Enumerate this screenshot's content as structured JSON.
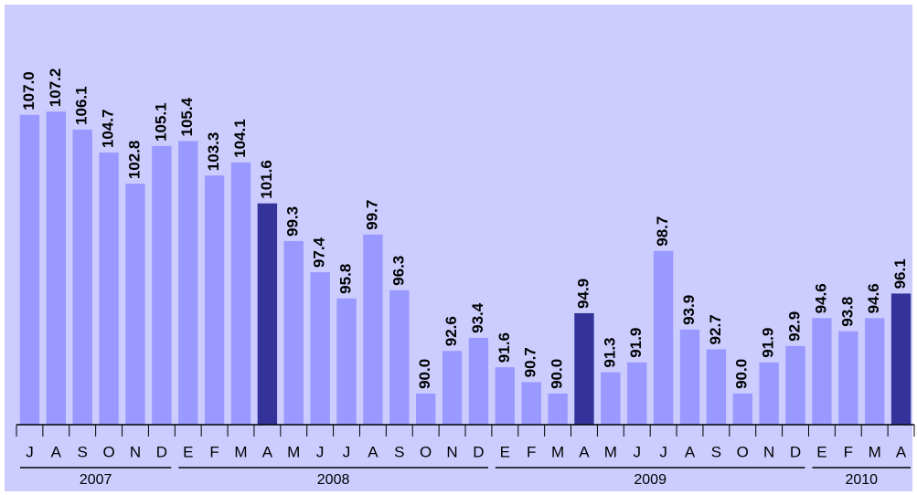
{
  "chart_data": {
    "type": "bar",
    "categories": [
      "J",
      "A",
      "S",
      "O",
      "N",
      "D",
      "E",
      "F",
      "M",
      "A",
      "M",
      "J",
      "J",
      "A",
      "S",
      "O",
      "N",
      "D",
      "E",
      "F",
      "M",
      "A",
      "M",
      "J",
      "J",
      "A",
      "S",
      "O",
      "N",
      "D",
      "E",
      "F",
      "M",
      "A"
    ],
    "values": [
      107.0,
      107.2,
      106.1,
      104.7,
      102.8,
      105.1,
      105.4,
      103.3,
      104.1,
      101.6,
      99.3,
      97.4,
      95.8,
      99.7,
      96.3,
      90.0,
      92.6,
      93.4,
      91.6,
      90.7,
      90.0,
      94.9,
      91.3,
      91.9,
      98.7,
      93.9,
      92.7,
      90.0,
      91.9,
      92.9,
      94.6,
      93.8,
      94.6,
      96.1
    ],
    "value_labels": [
      "107.0",
      "107.2",
      "106.1",
      "104.7",
      "102.8",
      "105.1",
      "105.4",
      "103.3",
      "104.1",
      "101.6",
      "99.3",
      "97.4",
      "95.8",
      "99.7",
      "96.3",
      "90.0",
      "92.6",
      "93.4",
      "91.6",
      "90.7",
      "90.0",
      "94.9",
      "91.3",
      "91.9",
      "98.7",
      "93.9",
      "92.7",
      "90.0",
      "91.9",
      "92.9",
      "94.6",
      "93.8",
      "94.6",
      "96.1"
    ],
    "colors": [
      "#9999ff",
      "#9999ff",
      "#9999ff",
      "#9999ff",
      "#9999ff",
      "#9999ff",
      "#9999ff",
      "#9999ff",
      "#9999ff",
      "#333399",
      "#9999ff",
      "#9999ff",
      "#9999ff",
      "#9999ff",
      "#9999ff",
      "#9999ff",
      "#9999ff",
      "#9999ff",
      "#9999ff",
      "#9999ff",
      "#9999ff",
      "#333399",
      "#9999ff",
      "#9999ff",
      "#9999ff",
      "#9999ff",
      "#9999ff",
      "#9999ff",
      "#9999ff",
      "#9999ff",
      "#9999ff",
      "#9999ff",
      "#9999ff",
      "#333399"
    ],
    "year_groups": [
      {
        "label": "2007",
        "span": 6
      },
      {
        "label": "2008",
        "span": 12
      },
      {
        "label": "2009",
        "span": 12
      },
      {
        "label": "2010",
        "span": 4
      }
    ],
    "ylim": [
      88.1,
      111
    ]
  }
}
